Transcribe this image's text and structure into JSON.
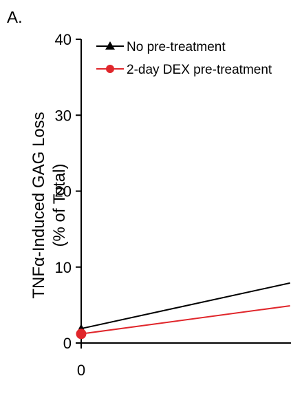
{
  "panel_label": "A.",
  "chart_data": {
    "type": "line",
    "ylabel_line1": "TNFα-Induced GAG Loss",
    "ylabel_line2": "(% of Total)",
    "ylim": [
      0,
      40
    ],
    "yticks": [
      "0",
      "10",
      "20",
      "30",
      "40"
    ],
    "xticks": [
      {
        "value": 0,
        "label": "0"
      }
    ],
    "x_visible_max": 8.8,
    "legend_position": "top-left",
    "series": [
      {
        "name": "No pre-treatment",
        "color": "#000000",
        "marker": "triangle",
        "points": [
          {
            "x": 0,
            "y": 1.9
          },
          {
            "x": 8.8,
            "y": 7.9
          }
        ]
      },
      {
        "name": "2-day DEX pre-treatment",
        "color": "#e0262b",
        "marker": "circle",
        "points": [
          {
            "x": 0,
            "y": 1.2
          },
          {
            "x": 8.8,
            "y": 4.9
          }
        ]
      }
    ]
  }
}
